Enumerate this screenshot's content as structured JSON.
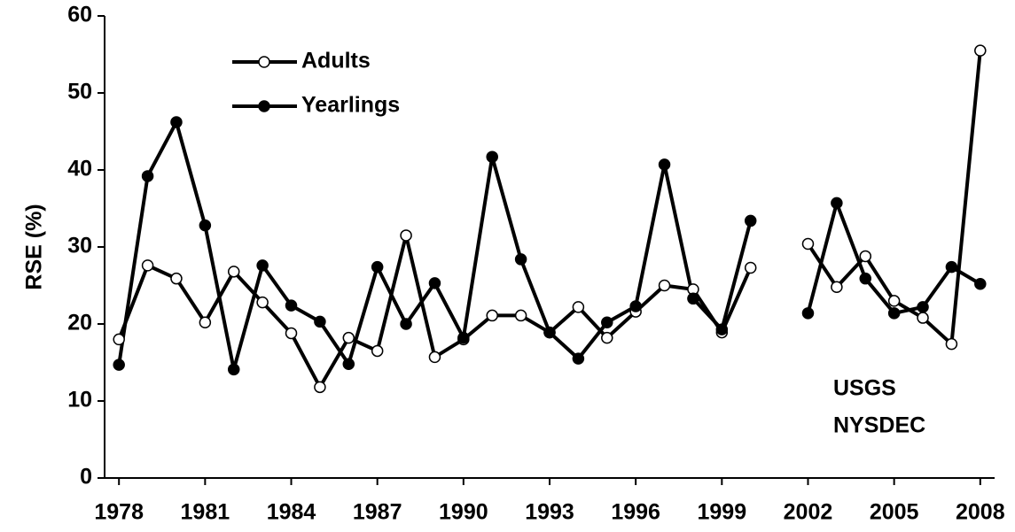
{
  "chart_data": {
    "type": "line",
    "y_label": "RSE (%)",
    "x": [
      1978,
      1979,
      1980,
      1981,
      1982,
      1983,
      1984,
      1985,
      1986,
      1987,
      1988,
      1989,
      1990,
      1991,
      1992,
      1993,
      1994,
      1995,
      1996,
      1997,
      1998,
      1999,
      2000,
      2001,
      2002,
      2003,
      2004,
      2005,
      2006,
      2007,
      2008
    ],
    "series": [
      {
        "name": "Adults",
        "color": "#000000",
        "marker_fill": "#ffffff",
        "values": [
          18.0,
          27.6,
          25.9,
          20.2,
          26.8,
          22.8,
          18.8,
          11.8,
          18.2,
          16.5,
          31.5,
          15.7,
          18.0,
          21.1,
          21.1,
          18.9,
          22.2,
          18.2,
          21.6,
          25.0,
          24.5,
          18.9,
          27.3,
          null,
          30.4,
          24.8,
          28.8,
          23.0,
          20.8,
          17.4,
          55.5
        ]
      },
      {
        "name": "Yearlings",
        "color": "#000000",
        "marker_fill": "#000000",
        "values": [
          14.7,
          39.2,
          46.2,
          32.8,
          14.1,
          27.6,
          22.4,
          20.3,
          14.8,
          27.4,
          20.0,
          25.3,
          18.2,
          41.7,
          28.4,
          18.9,
          15.5,
          20.2,
          22.3,
          40.7,
          23.3,
          19.3,
          33.4,
          null,
          21.4,
          35.7,
          25.9,
          21.4,
          22.2,
          27.4,
          25.2
        ]
      }
    ],
    "xlim": [
      1977.5,
      2008.5
    ],
    "xticks": [
      1978,
      1981,
      1984,
      1987,
      1990,
      1993,
      1996,
      1999,
      2002,
      2005,
      2008
    ],
    "ylim": [
      0,
      60
    ],
    "yticks": [
      0,
      10,
      20,
      30,
      40,
      50,
      60
    ],
    "grid": false,
    "legend": "upper left",
    "annotations": [
      "USGS",
      "NYSDEC"
    ]
  }
}
